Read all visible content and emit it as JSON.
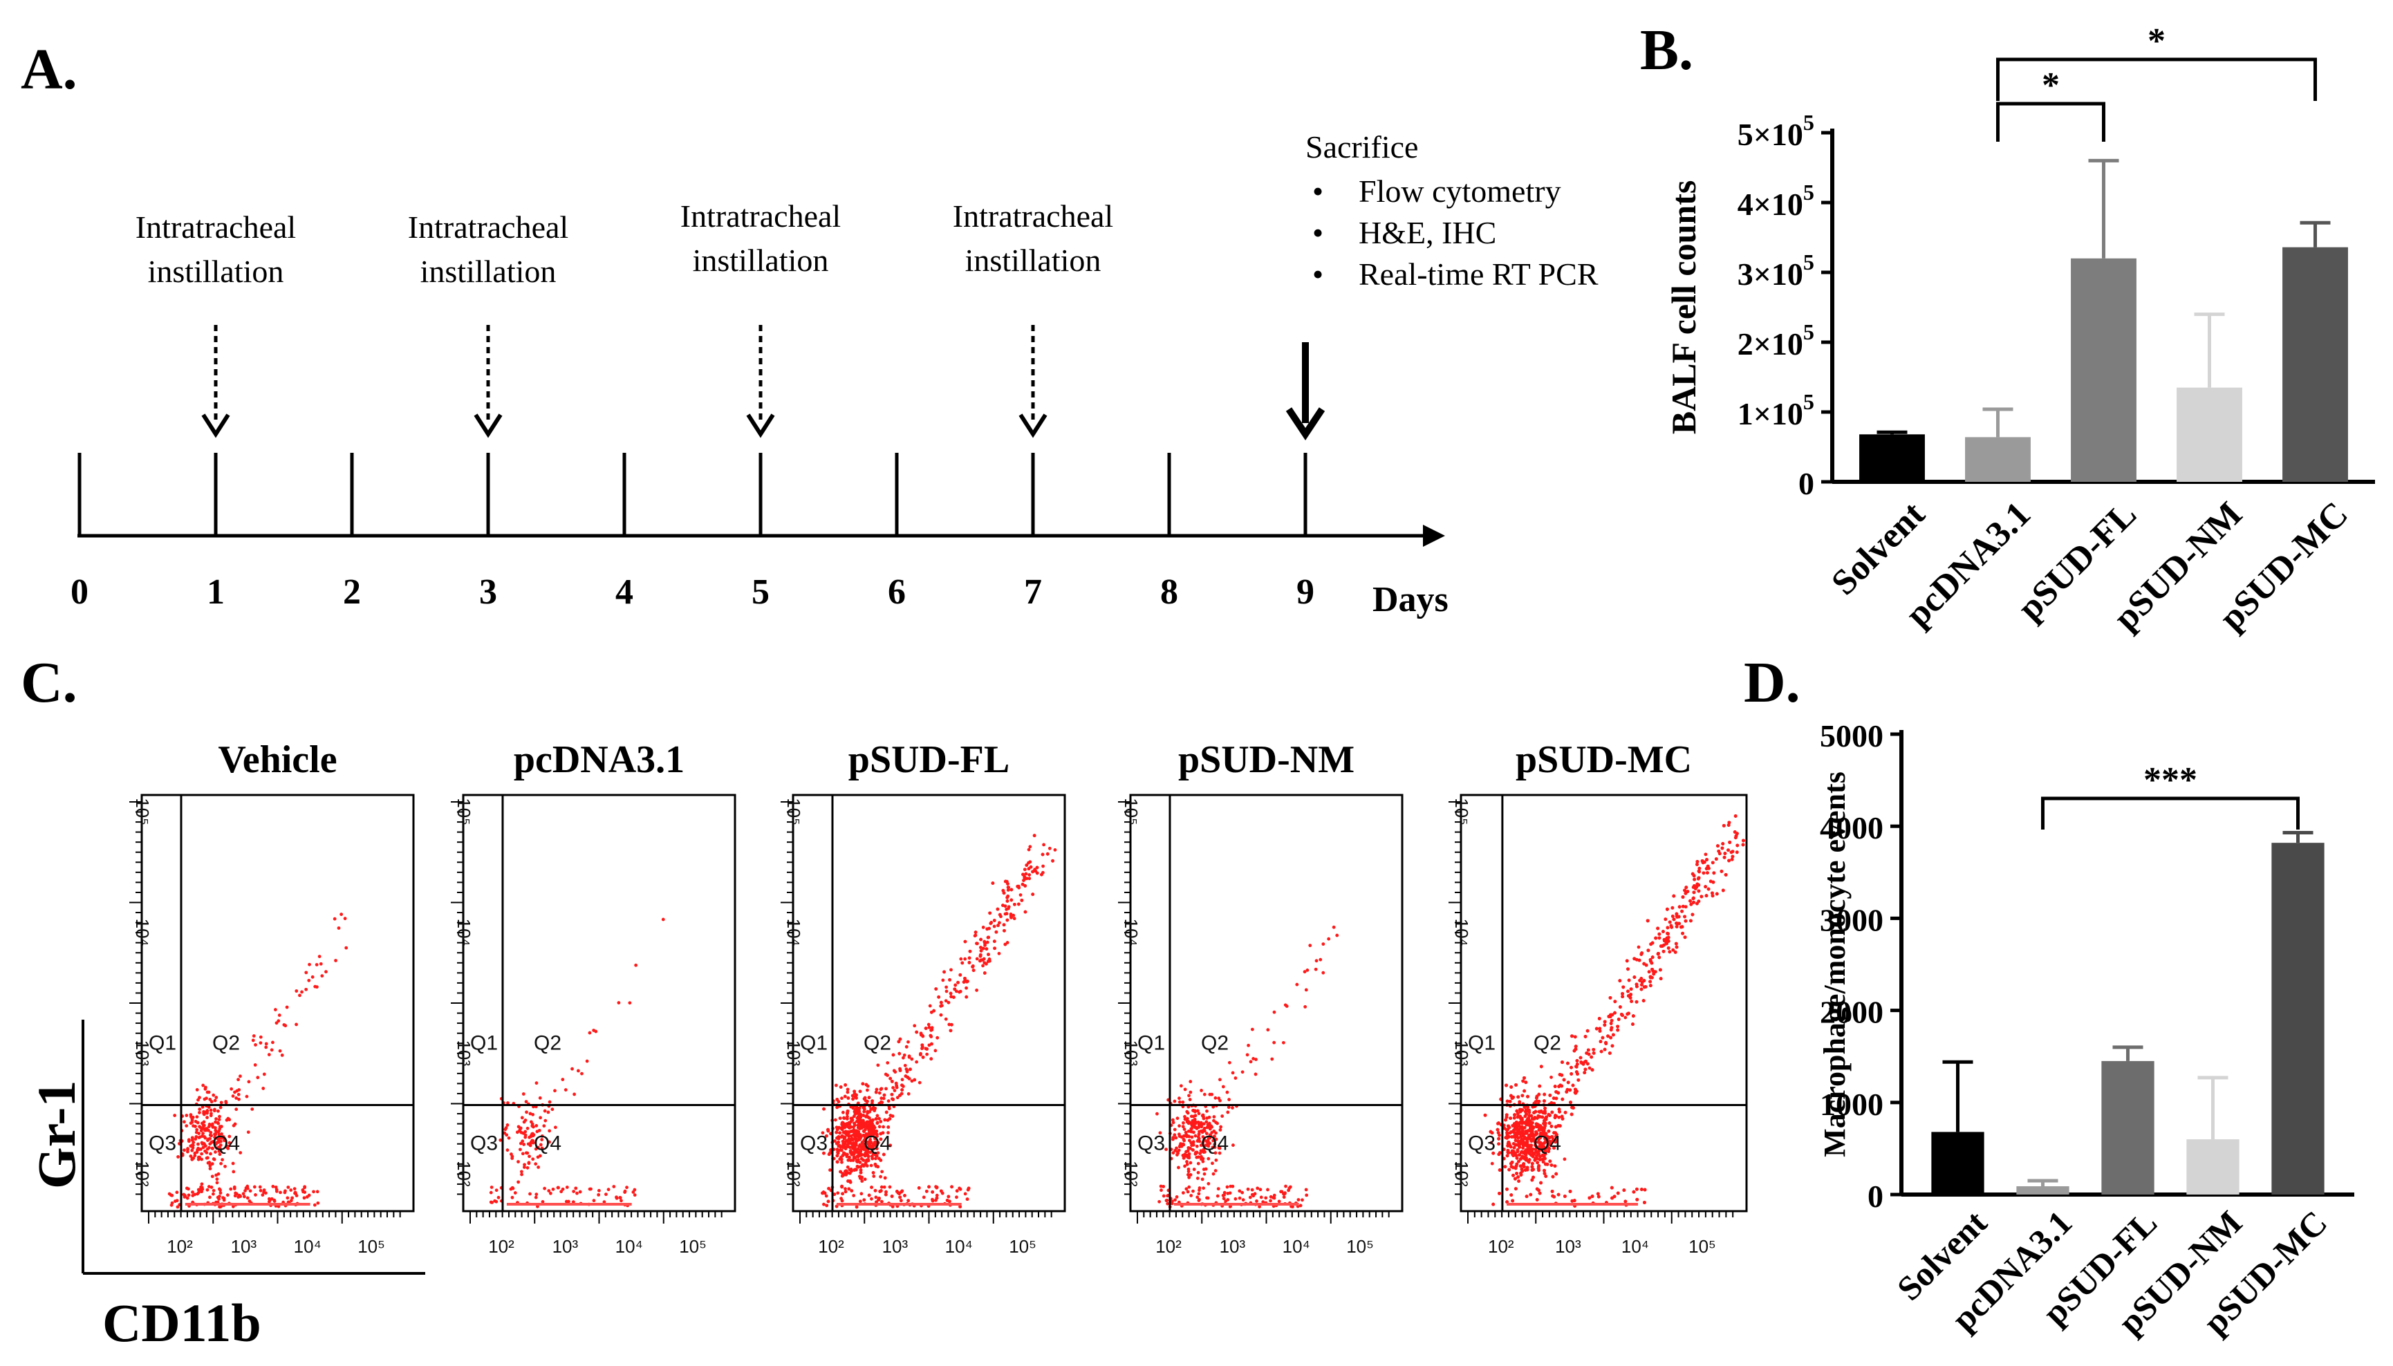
{
  "panels": {
    "a": {
      "label": "A.",
      "days": [
        "0",
        "1",
        "2",
        "3",
        "4",
        "5",
        "6",
        "7",
        "8",
        "9"
      ],
      "days_label": "Days",
      "instillations": [
        {
          "day": 1,
          "line1": "Intratracheal",
          "line2": "instillation"
        },
        {
          "day": 3,
          "line1": "Intratracheal",
          "line2": "instillation"
        },
        {
          "day": 5,
          "line1": "Intratracheal",
          "line2": "instillation"
        },
        {
          "day": 7,
          "line1": "Intratracheal",
          "line2": "instillation"
        }
      ],
      "sacrifice": {
        "day": 9,
        "title": "Sacrifice",
        "items": [
          "Flow cytometry",
          "H&E, IHC",
          "Real-time  RT PCR"
        ]
      }
    },
    "b": {
      "label": "B."
    },
    "c": {
      "label": "C.",
      "y_axis_label": "Gr-1",
      "x_axis_label": "CD11b",
      "quadrant_labels": [
        "Q1",
        "Q2",
        "Q3",
        "Q4"
      ],
      "tick_labels": [
        "10²",
        "10³",
        "10⁴",
        "10⁵"
      ],
      "plots": [
        {
          "title": "Vehicle",
          "density": "low",
          "tail": 0.35
        },
        {
          "title": "pcDNA3.1",
          "density": "very-low",
          "tail": 0.25
        },
        {
          "title": "pSUD-FL",
          "density": "high",
          "tail": 0.85
        },
        {
          "title": "pSUD-NM",
          "density": "low",
          "tail": 0.35
        },
        {
          "title": "pSUD-MC",
          "density": "very-high",
          "tail": 1.0
        }
      ]
    },
    "d": {
      "label": "D."
    }
  },
  "chart_data": [
    {
      "id": "B",
      "type": "bar",
      "categories": [
        "Solvent",
        "pcDNA3.1",
        "pSUD-FL",
        "pSUD-NM",
        "pSUD-MC"
      ],
      "values": [
        68000,
        64000,
        320000,
        135000,
        336000
      ],
      "errors": [
        3000,
        40000,
        140000,
        105000,
        35000
      ],
      "colors": [
        "#000000",
        "#9a9a9a",
        "#7d7d7d",
        "#d4d4d4",
        "#555555"
      ],
      "ylabel": "BALF cell counts",
      "ylim": [
        0,
        500000
      ],
      "yticks": [
        0,
        100000,
        200000,
        300000,
        400000,
        500000
      ],
      "ytick_labels": [
        [
          "0",
          ""
        ],
        [
          "1×10",
          "5"
        ],
        [
          "2×10",
          "5"
        ],
        [
          "3×10",
          "5"
        ],
        [
          "4×10",
          "5"
        ],
        [
          "5×10",
          "5"
        ]
      ],
      "significance": [
        {
          "from": 1,
          "to": 2,
          "label": "*"
        },
        {
          "from": 1,
          "to": 4,
          "label": "*"
        }
      ]
    },
    {
      "id": "D",
      "type": "bar",
      "categories": [
        "Solvent",
        "pcDNA3.1",
        "pSUD-FL",
        "pSUD-NM",
        "pSUD-MC"
      ],
      "values": [
        680,
        90,
        1450,
        600,
        3820
      ],
      "errors": [
        760,
        60,
        150,
        670,
        110
      ],
      "colors": [
        "#000000",
        "#9a9a9a",
        "#6d6d6d",
        "#d4d4d4",
        "#4a4a4a"
      ],
      "ylabel": "Macrophage/monocyte events",
      "ylim": [
        0,
        5000
      ],
      "yticks": [
        0,
        1000,
        2000,
        3000,
        4000,
        5000
      ],
      "ytick_labels": [
        [
          "0",
          ""
        ],
        [
          "1000",
          ""
        ],
        [
          "2000",
          ""
        ],
        [
          "3000",
          ""
        ],
        [
          "4000",
          ""
        ],
        [
          "5000",
          ""
        ]
      ],
      "significance": [
        {
          "from": 1,
          "to": 4,
          "label": "***"
        }
      ]
    }
  ]
}
